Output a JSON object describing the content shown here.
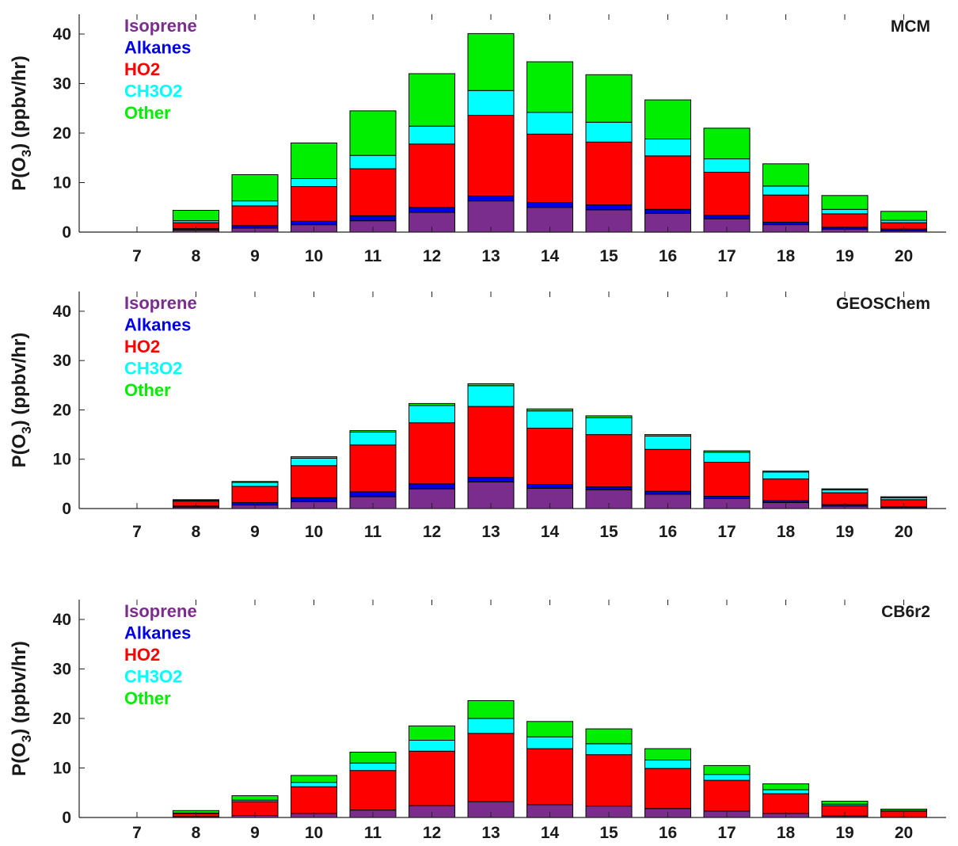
{
  "chart_data": [
    {
      "type": "bar",
      "stacked": true,
      "title": "MCM",
      "ylabel": "P(O3) (ppbv/hr)",
      "ylabel_main": "P(O",
      "ylabel_sub": "3",
      "ylabel_rest": ") (ppbv/hr)",
      "xlabel": "",
      "ylim": [
        0,
        44
      ],
      "yticks": [
        0,
        10,
        20,
        30,
        40
      ],
      "grid": false,
      "legend_placement": "top-left",
      "categories": [
        "7",
        "8",
        "9",
        "10",
        "11",
        "12",
        "13",
        "14",
        "15",
        "16",
        "17",
        "18",
        "19",
        "20"
      ],
      "series": [
        {
          "name": "Isoprene",
          "color": "#7b2d8e",
          "values": [
            0,
            0.4,
            0.8,
            1.5,
            2.3,
            4.0,
            6.3,
            5.0,
            4.5,
            3.8,
            2.7,
            1.5,
            0.6,
            0.3
          ]
        },
        {
          "name": "Alkanes",
          "color": "#0000e6",
          "values": [
            0,
            0.3,
            0.5,
            0.7,
            1.0,
            1.0,
            1.0,
            1.0,
            1.0,
            0.8,
            0.7,
            0.5,
            0.4,
            0.3
          ]
        },
        {
          "name": "HO2",
          "color": "#ff0000",
          "values": [
            0,
            1.2,
            4.0,
            7.0,
            9.5,
            12.8,
            16.3,
            13.8,
            12.7,
            10.8,
            8.7,
            5.5,
            2.7,
            1.3
          ]
        },
        {
          "name": "CH3O2",
          "color": "#00ffff",
          "values": [
            0,
            0.4,
            1.0,
            1.6,
            2.7,
            3.6,
            5.0,
            4.4,
            4.0,
            3.4,
            2.7,
            1.8,
            0.9,
            0.5
          ]
        },
        {
          "name": "Other",
          "color": "#00ee00",
          "values": [
            0,
            2.1,
            5.3,
            7.2,
            9.0,
            10.6,
            11.5,
            10.2,
            9.6,
            7.9,
            6.2,
            4.5,
            2.8,
            1.8
          ]
        }
      ]
    },
    {
      "type": "bar",
      "stacked": true,
      "title": "GEOSChem",
      "ylabel": "P(O3) (ppbv/hr)",
      "ylabel_main": "P(O",
      "ylabel_sub": "3",
      "ylabel_rest": ") (ppbv/hr)",
      "xlabel": "",
      "ylim": [
        0,
        44
      ],
      "yticks": [
        0,
        10,
        20,
        30,
        40
      ],
      "grid": false,
      "legend_placement": "top-left",
      "categories": [
        "7",
        "8",
        "9",
        "10",
        "11",
        "12",
        "13",
        "14",
        "15",
        "16",
        "17",
        "18",
        "19",
        "20"
      ],
      "series": [
        {
          "name": "Isoprene",
          "color": "#7b2d8e",
          "values": [
            0,
            0.3,
            0.7,
            1.4,
            2.4,
            4.0,
            5.4,
            4.1,
            3.8,
            2.9,
            2.0,
            1.2,
            0.5,
            0.2
          ]
        },
        {
          "name": "Alkanes",
          "color": "#0000e6",
          "values": [
            0,
            0.2,
            0.5,
            0.8,
            1.0,
            1.0,
            0.9,
            0.8,
            0.6,
            0.6,
            0.5,
            0.4,
            0.3,
            0.2
          ]
        },
        {
          "name": "HO2",
          "color": "#ff0000",
          "values": [
            0,
            1.0,
            3.3,
            6.5,
            9.5,
            12.4,
            14.4,
            11.4,
            10.6,
            8.5,
            6.9,
            4.4,
            2.4,
            1.4
          ]
        },
        {
          "name": "CH3O2",
          "color": "#00ffff",
          "values": [
            0,
            0.2,
            0.8,
            1.5,
            2.6,
            3.5,
            4.2,
            3.5,
            3.4,
            2.7,
            2.0,
            1.4,
            0.6,
            0.4
          ]
        },
        {
          "name": "Other",
          "color": "#00ee00",
          "values": [
            0,
            0.1,
            0.2,
            0.3,
            0.3,
            0.4,
            0.4,
            0.4,
            0.4,
            0.3,
            0.3,
            0.2,
            0.2,
            0.2
          ]
        }
      ]
    },
    {
      "type": "bar",
      "stacked": true,
      "title": "CB6r2",
      "ylabel": "P(O3) (ppbv/hr)",
      "ylabel_main": "P(O",
      "ylabel_sub": "3",
      "ylabel_rest": ") (ppbv/hr)",
      "xlabel": "",
      "ylim": [
        0,
        44
      ],
      "yticks": [
        0,
        10,
        20,
        30,
        40
      ],
      "grid": false,
      "legend_placement": "top-left",
      "categories": [
        "7",
        "8",
        "9",
        "10",
        "11",
        "12",
        "13",
        "14",
        "15",
        "16",
        "17",
        "18",
        "19",
        "20"
      ],
      "series": [
        {
          "name": "Isoprene",
          "color": "#7b2d8e",
          "values": [
            0,
            0.2,
            0.4,
            0.8,
            1.5,
            2.4,
            3.2,
            2.6,
            2.3,
            1.8,
            1.3,
            0.8,
            0.3,
            0.1
          ]
        },
        {
          "name": "Alkanes",
          "color": "#0000e6",
          "values": [
            0,
            0,
            0,
            0,
            0,
            0,
            0,
            0,
            0,
            0,
            0,
            0,
            0,
            0
          ]
        },
        {
          "name": "HO2",
          "color": "#ff0000",
          "values": [
            0,
            0.6,
            2.8,
            5.4,
            8.0,
            11.0,
            13.8,
            11.3,
            10.4,
            8.1,
            6.2,
            4.0,
            2.1,
            1.2
          ]
        },
        {
          "name": "CH3O2",
          "color": "#00ffff",
          "values": [
            0,
            0.1,
            0.3,
            0.9,
            1.5,
            2.2,
            3.0,
            2.4,
            2.2,
            1.7,
            1.2,
            0.8,
            0.3,
            0.1
          ]
        },
        {
          "name": "Other",
          "color": "#00ee00",
          "values": [
            0,
            0.5,
            0.9,
            1.4,
            2.2,
            2.9,
            3.6,
            3.1,
            3.0,
            2.3,
            1.8,
            1.2,
            0.6,
            0.3
          ]
        }
      ]
    }
  ]
}
